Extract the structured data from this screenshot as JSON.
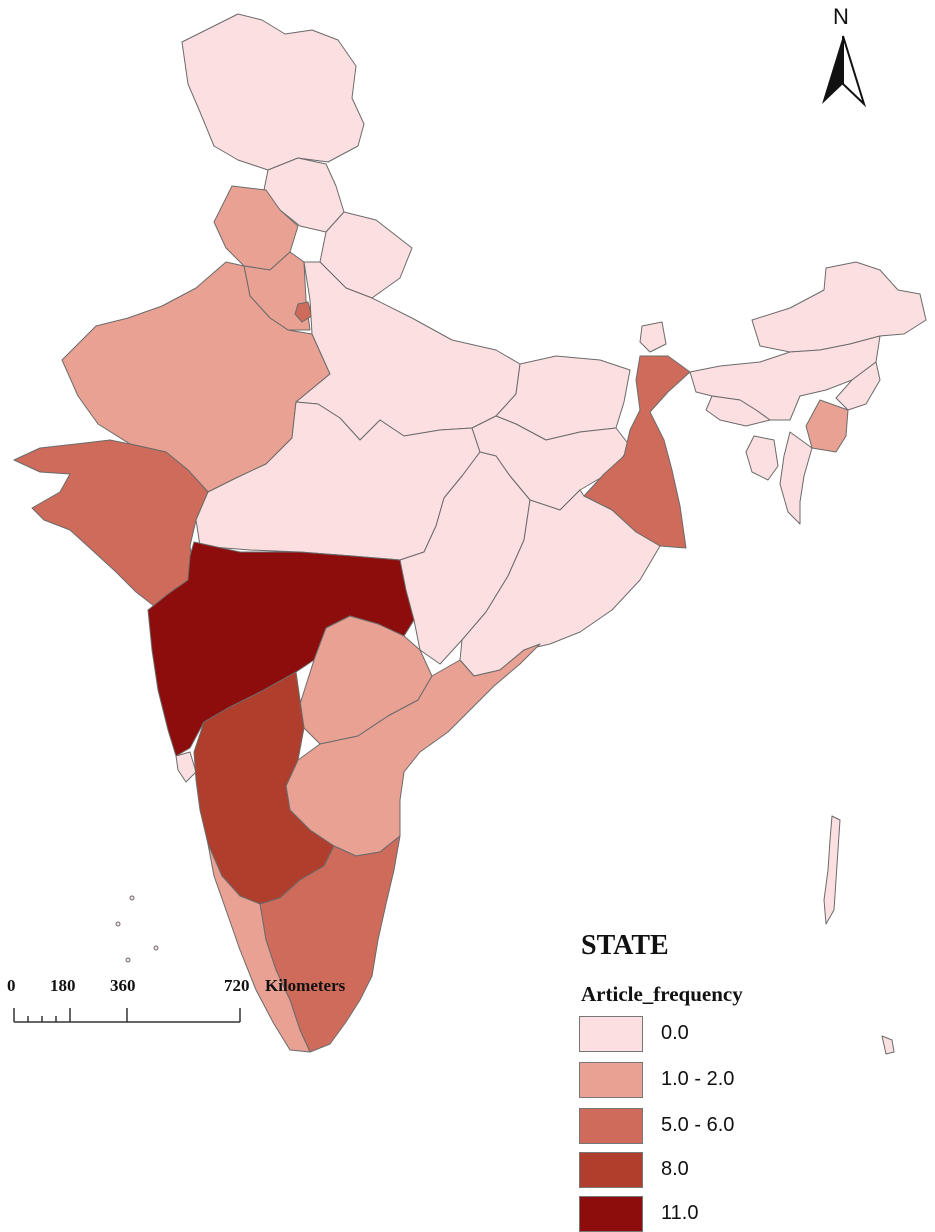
{
  "legend": {
    "title": "STATE",
    "subtitle": "Article_frequency",
    "classes": [
      {
        "label": "0.0",
        "color": "#fcdfe0"
      },
      {
        "label": "1.0 - 2.0",
        "color": "#e8a193"
      },
      {
        "label": "5.0 - 6.0",
        "color": "#cf6b5b"
      },
      {
        "label": "8.0",
        "color": "#b03e2d"
      },
      {
        "label": "11.0",
        "color": "#8d0c0c"
      }
    ]
  },
  "north_arrow": {
    "label": "N"
  },
  "scale_bar": {
    "ticks": [
      "0",
      "180",
      "360",
      "720"
    ],
    "unit": "Kilometers"
  }
}
